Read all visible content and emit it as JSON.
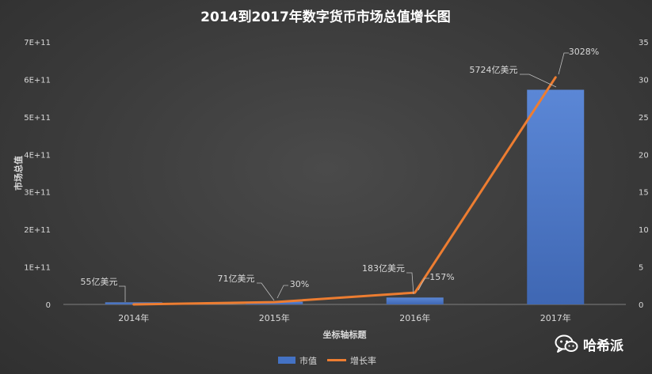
{
  "chart_data": {
    "type": "bar",
    "title": "2014到2017年数字货币市场总值增长图",
    "xlabel": "坐标轴标题",
    "ylabel": "市场总值",
    "categories": [
      "2014年",
      "2015年",
      "2016年",
      "2017年"
    ],
    "series": [
      {
        "name": "市值",
        "type": "bar",
        "axis": "left",
        "values": [
          5500000000,
          7100000000,
          18300000000,
          572400000000
        ],
        "data_labels": [
          "55亿美元",
          "71亿美元",
          "183亿美元",
          "5724亿美元"
        ],
        "color": "#4472c4"
      },
      {
        "name": "增长率",
        "type": "line",
        "axis": "right",
        "values": [
          0,
          0.3,
          1.57,
          30.28
        ],
        "data_labels": [
          "",
          "30%",
          "157%",
          "3028%"
        ],
        "color": "#ed7d31"
      }
    ],
    "y_left": {
      "range": [
        0,
        700000000000
      ],
      "ticks": [
        0,
        100000000000,
        200000000000,
        300000000000,
        400000000000,
        500000000000,
        600000000000,
        700000000000
      ],
      "tick_labels": [
        "0",
        "1E+11",
        "2E+11",
        "3E+11",
        "4E+11",
        "5E+11",
        "6E+11",
        "7E+11"
      ]
    },
    "y_right": {
      "range": [
        0,
        35
      ],
      "ticks": [
        0,
        5,
        10,
        15,
        20,
        25,
        30,
        35
      ],
      "tick_labels": [
        "0",
        "5",
        "10",
        "15",
        "20",
        "25",
        "30",
        "35"
      ]
    },
    "grid": false,
    "legend_position": "bottom"
  },
  "watermark": {
    "text": "哈希派",
    "icon": "wechat-icon"
  },
  "colors": {
    "background": "#3a3a3a",
    "text": "#d9d9d9",
    "title": "#ffffff",
    "bar": "#4472c4",
    "line": "#ed7d31",
    "leader": "#bfbfbf"
  }
}
